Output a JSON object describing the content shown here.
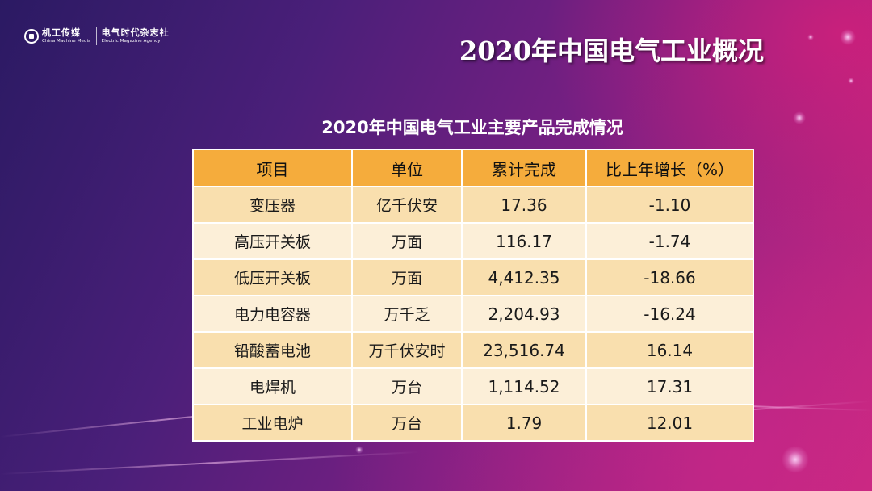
{
  "logo": {
    "brand1_name": "机工传媒",
    "brand1_sub": "China Machine Media",
    "brand2_name": "电气时代杂志社",
    "brand2_sub": "Electric Magazine Agency"
  },
  "slide": {
    "title": "2020年中国电气工业概况"
  },
  "table": {
    "title": "2020年中国电气工业主要产品完成情况",
    "headers": [
      "项目",
      "单位",
      "累计完成",
      "比上年增长（%）"
    ],
    "rows": [
      [
        "变压器",
        "亿千伏安",
        "17.36",
        "-1.10"
      ],
      [
        "高压开关板",
        "万面",
        "116.17",
        "-1.74"
      ],
      [
        "低压开关板",
        "万面",
        "4,412.35",
        "-18.66"
      ],
      [
        "电力电容器",
        "万千乏",
        "2,204.93",
        "-16.24"
      ],
      [
        "铅酸蓄电池",
        "万千伏安时",
        "23,516.74",
        "16.14"
      ],
      [
        "电焊机",
        "万台",
        "1,114.52",
        "17.31"
      ],
      [
        "工业电炉",
        "万台",
        "1.79",
        "12.01"
      ]
    ]
  },
  "colors": {
    "header_bg": "#f5ac3c",
    "row_odd_bg": "#f9dfae",
    "row_even_bg": "#fcefd8"
  }
}
